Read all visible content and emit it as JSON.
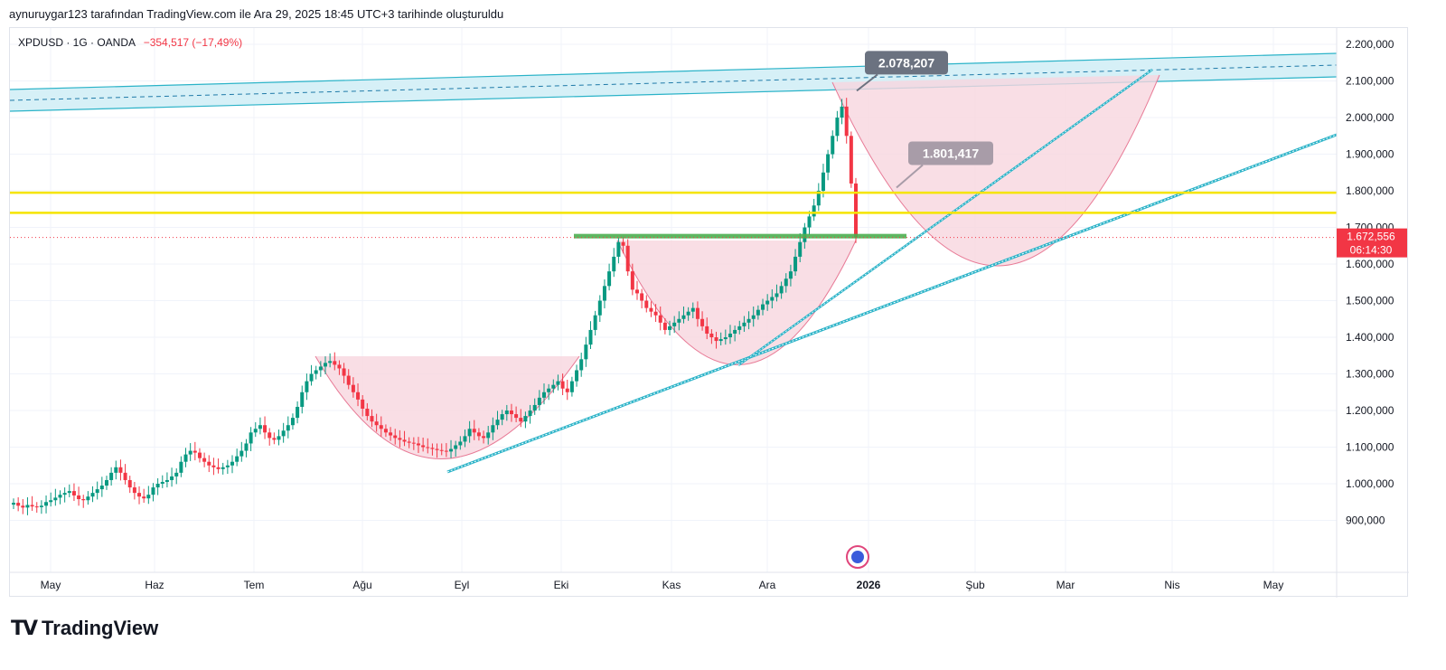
{
  "header": {
    "text": "aynuruygar123 tarafından TradingView.com ile Ara 29, 2025 18:45 UTC+3 tarihinde oluşturuldu"
  },
  "legend": {
    "symbol_line": "XPDUSD · 1G · OANDA",
    "change": "−354,517 (−17,49%)"
  },
  "price_labels": {
    "high_callout": "2.078,207",
    "mid_callout": "1.801,417",
    "current_price": "1.672,556",
    "countdown": "06:14:30"
  },
  "branding": {
    "logo_text": "TradingView"
  },
  "colors": {
    "up": "#089981",
    "down": "#f23645",
    "yellow": "#f5e400",
    "channel": "#2bb3c8",
    "cup_fill": "#f8d6df",
    "cup_stroke": "#e87a96",
    "support": "#4caf50"
  },
  "chart_data": {
    "type": "candlestick",
    "symbol": "XPDUSD",
    "interval": "1G",
    "source": "OANDA",
    "x_ticks": [
      "May",
      "Haz",
      "Tem",
      "Ağu",
      "Eyl",
      "Eki",
      "Kas",
      "Ara",
      "2026",
      "Şub",
      "Mar",
      "Nis",
      "May"
    ],
    "y_ticks": [
      "900,000",
      "1.000,000",
      "1.100,000",
      "1.200,000",
      "1.300,000",
      "1.400,000",
      "1.500,000",
      "1.600,000",
      "1.700,000",
      "1.800,000",
      "1.900,000",
      "2.000,000",
      "2.100,000",
      "2.200,000"
    ],
    "y_tick_values": [
      900,
      1000,
      1100,
      1200,
      1300,
      1400,
      1500,
      1600,
      1700,
      1800,
      1900,
      2000,
      2100,
      2200
    ],
    "ylim": [
      800,
      2230
    ],
    "closes": [
      948,
      940,
      935,
      942,
      938,
      936,
      940,
      950,
      955,
      962,
      970,
      975,
      980,
      968,
      958,
      955,
      965,
      975,
      985,
      995,
      1010,
      1030,
      1045,
      1030,
      1010,
      990,
      975,
      965,
      960,
      970,
      990,
      1000,
      1005,
      1010,
      1020,
      1030,
      1060,
      1080,
      1090,
      1085,
      1070,
      1060,
      1050,
      1045,
      1040,
      1045,
      1050,
      1060,
      1075,
      1090,
      1110,
      1140,
      1150,
      1160,
      1140,
      1125,
      1120,
      1130,
      1145,
      1160,
      1180,
      1210,
      1250,
      1280,
      1300,
      1310,
      1320,
      1330,
      1335,
      1325,
      1315,
      1295,
      1270,
      1250,
      1230,
      1205,
      1185,
      1170,
      1160,
      1150,
      1140,
      1132,
      1125,
      1120,
      1115,
      1112,
      1110,
      1105,
      1100,
      1098,
      1095,
      1092,
      1090,
      1088,
      1095,
      1105,
      1115,
      1130,
      1150,
      1140,
      1130,
      1125,
      1140,
      1160,
      1175,
      1190,
      1200,
      1190,
      1180,
      1170,
      1185,
      1200,
      1215,
      1235,
      1250,
      1260,
      1270,
      1280,
      1260,
      1250,
      1280,
      1310,
      1340,
      1380,
      1420,
      1460,
      1500,
      1540,
      1580,
      1620,
      1660,
      1650,
      1580,
      1530,
      1520,
      1500,
      1480,
      1470,
      1460,
      1440,
      1420,
      1430,
      1440,
      1450,
      1460,
      1470,
      1480,
      1450,
      1430,
      1410,
      1400,
      1390,
      1395,
      1400,
      1410,
      1420,
      1430,
      1440,
      1450,
      1460,
      1475,
      1490,
      1500,
      1510,
      1520,
      1540,
      1560,
      1580,
      1620,
      1660,
      1700,
      1730,
      1760,
      1800,
      1850,
      1900,
      1950,
      2000,
      2030,
      1950,
      1820,
      1672.556
    ],
    "horizontal_levels": [
      {
        "value": 1795,
        "color": "yellow"
      },
      {
        "value": 1740,
        "color": "yellow"
      },
      {
        "value": 1672.556,
        "label": "current price"
      },
      {
        "value": 1675,
        "label": "support",
        "color": "support"
      }
    ],
    "annotations": [
      {
        "text": "2.078,207",
        "value": 2078.207
      },
      {
        "text": "1.801,417",
        "value": 1801.417
      }
    ],
    "last_price": 1672.556,
    "change": -354.517,
    "change_pct": -17.49,
    "grid": true,
    "legend": "top-left"
  }
}
